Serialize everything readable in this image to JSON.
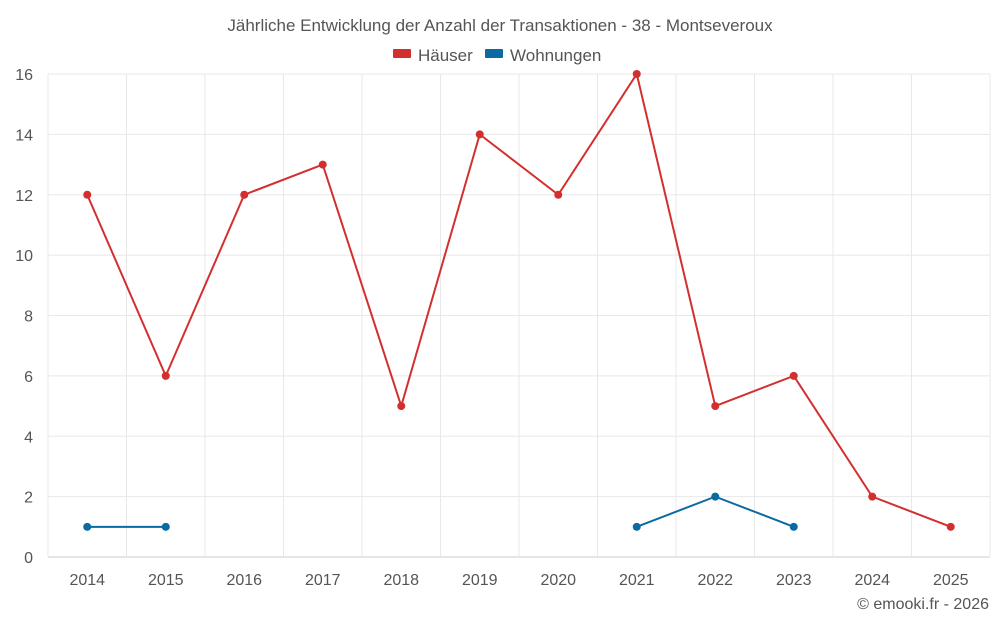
{
  "chart_data": {
    "type": "line",
    "title": "Jährliche Entwicklung der Anzahl der Transaktionen - 38 - Montseveroux",
    "categories": [
      "2014",
      "2015",
      "2016",
      "2017",
      "2018",
      "2019",
      "2020",
      "2021",
      "2022",
      "2023",
      "2024",
      "2025"
    ],
    "series": [
      {
        "name": "Häuser",
        "color": "#d32f2f",
        "values": [
          12,
          6,
          12,
          13,
          5,
          14,
          12,
          16,
          5,
          6,
          2,
          1
        ]
      },
      {
        "name": "Wohnungen",
        "color": "#0b6aa2",
        "values": [
          1,
          1,
          null,
          null,
          null,
          null,
          null,
          1,
          2,
          1,
          null,
          null
        ]
      }
    ],
    "ylim": [
      0,
      16
    ],
    "yticks": [
      0,
      2,
      4,
      6,
      8,
      10,
      12,
      14,
      16
    ],
    "xlabel": "",
    "ylabel": "",
    "grid": true,
    "legend": "top-center"
  },
  "credit": "© emooki.fr - 2026"
}
